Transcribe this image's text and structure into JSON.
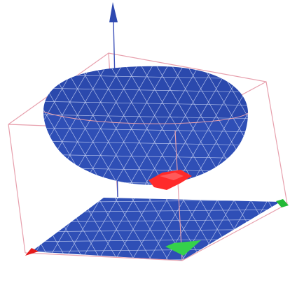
{
  "figure": {
    "colors": {
      "mesh_fill": "#2f4fb6",
      "mesh_fill_dark": "#25409f",
      "mesh_lines": "#c9d3f3",
      "bounding_box": "#e7a0ad",
      "axis": "#3b4fb8",
      "axis_arrow": "#2e49b0",
      "contact_marker": "#ff2a2a",
      "corner_marker_red": "#e41b1b",
      "corner_marker_green": "#23b936",
      "green_marker": "#35d14b"
    },
    "objects": [
      {
        "name": "hemispherical-shell",
        "kind": "triangular-mesh"
      },
      {
        "name": "planar-sheet",
        "kind": "triangular-mesh"
      },
      {
        "name": "vertical-axis",
        "kind": "arrow"
      },
      {
        "name": "bounding-box",
        "kind": "wireframe"
      },
      {
        "name": "contact-region",
        "kind": "marker"
      }
    ]
  }
}
